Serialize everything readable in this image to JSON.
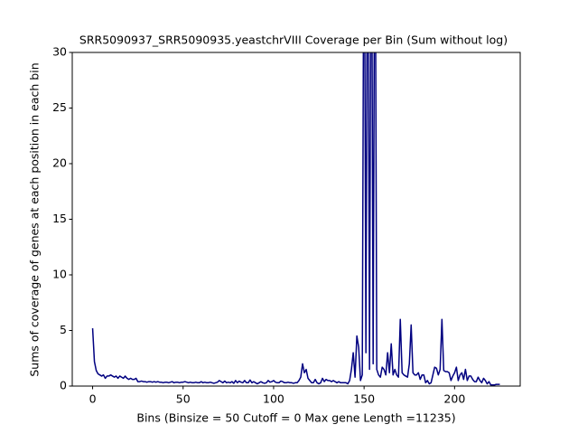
{
  "chart_data": {
    "type": "line",
    "title": "SRR5090937_SRR5090935.yeastchrVIII Coverage per Bin (Sum without log)",
    "xlabel": "Bins  (Binsize = 50 Cutoff = 0 Max gene Length =11235)",
    "ylabel": "Sums of coverage of genes at each position in each bin",
    "x": [
      0,
      1,
      2,
      3,
      4,
      5,
      6,
      7,
      8,
      9,
      10,
      11,
      12,
      13,
      14,
      15,
      16,
      17,
      18,
      19,
      20,
      21,
      22,
      23,
      24,
      25,
      26,
      27,
      28,
      29,
      30,
      31,
      32,
      33,
      34,
      35,
      36,
      37,
      38,
      39,
      40,
      41,
      42,
      43,
      44,
      45,
      46,
      47,
      48,
      49,
      50,
      51,
      52,
      53,
      54,
      55,
      56,
      57,
      58,
      59,
      60,
      61,
      62,
      63,
      64,
      65,
      66,
      67,
      68,
      69,
      70,
      71,
      72,
      73,
      74,
      75,
      76,
      77,
      78,
      79,
      80,
      81,
      82,
      83,
      84,
      85,
      86,
      87,
      88,
      89,
      90,
      91,
      92,
      93,
      94,
      95,
      96,
      97,
      98,
      99,
      100,
      101,
      102,
      103,
      104,
      105,
      106,
      107,
      108,
      109,
      110,
      111,
      112,
      113,
      114,
      115,
      116,
      117,
      118,
      119,
      120,
      121,
      122,
      123,
      124,
      125,
      126,
      127,
      128,
      129,
      130,
      131,
      132,
      133,
      134,
      135,
      136,
      137,
      138,
      139,
      140,
      141,
      142,
      143,
      144,
      145,
      146,
      147,
      148,
      149,
      150,
      151,
      152,
      153,
      154,
      155,
      156,
      157,
      158,
      159,
      160,
      161,
      162,
      163,
      164,
      165,
      166,
      167,
      168,
      169,
      170,
      171,
      172,
      173,
      174,
      175,
      176,
      177,
      178,
      179,
      180,
      181,
      182,
      183,
      184,
      185,
      186,
      187,
      188,
      189,
      190,
      191,
      192,
      193,
      194,
      195,
      196,
      197,
      198,
      199,
      200,
      201,
      202,
      203,
      204,
      205,
      206,
      207,
      208,
      209,
      210,
      211,
      212,
      213,
      214,
      215,
      216,
      217,
      218,
      219,
      220,
      221,
      222,
      223,
      224,
      225
    ],
    "series": [
      {
        "color": "#000080",
        "values": [
          5.2,
          2.2,
          1.4,
          1.1,
          1.0,
          0.9,
          1.0,
          0.7,
          0.9,
          0.9,
          1.0,
          0.9,
          0.8,
          0.9,
          0.7,
          0.9,
          0.8,
          0.7,
          0.9,
          0.7,
          0.6,
          0.7,
          0.6,
          0.6,
          0.7,
          0.4,
          0.4,
          0.45,
          0.4,
          0.4,
          0.35,
          0.4,
          0.4,
          0.35,
          0.4,
          0.35,
          0.4,
          0.35,
          0.35,
          0.3,
          0.35,
          0.35,
          0.3,
          0.35,
          0.4,
          0.3,
          0.35,
          0.35,
          0.3,
          0.35,
          0.35,
          0.4,
          0.35,
          0.3,
          0.35,
          0.3,
          0.3,
          0.35,
          0.3,
          0.3,
          0.4,
          0.3,
          0.35,
          0.3,
          0.3,
          0.35,
          0.3,
          0.25,
          0.3,
          0.35,
          0.5,
          0.4,
          0.3,
          0.45,
          0.3,
          0.35,
          0.3,
          0.4,
          0.25,
          0.5,
          0.3,
          0.45,
          0.35,
          0.3,
          0.5,
          0.3,
          0.3,
          0.55,
          0.3,
          0.4,
          0.3,
          0.2,
          0.3,
          0.4,
          0.3,
          0.25,
          0.3,
          0.5,
          0.35,
          0.4,
          0.5,
          0.35,
          0.3,
          0.3,
          0.45,
          0.4,
          0.3,
          0.3,
          0.35,
          0.3,
          0.3,
          0.25,
          0.3,
          0.3,
          0.5,
          0.8,
          2.0,
          1.2,
          1.5,
          0.7,
          0.5,
          0.3,
          0.3,
          0.6,
          0.3,
          0.2,
          0.3,
          0.7,
          0.4,
          0.6,
          0.5,
          0.5,
          0.4,
          0.5,
          0.4,
          0.3,
          0.4,
          0.3,
          0.3,
          0.3,
          0.3,
          0.2,
          0.5,
          1.5,
          3.0,
          0.8,
          4.5,
          3.5,
          0.5,
          1.0,
          50,
          3.0,
          50,
          1.5,
          50,
          2.0,
          50,
          1.5,
          1.0,
          0.8,
          1.7,
          1.5,
          1.0,
          3.0,
          1.2,
          3.8,
          1.0,
          1.5,
          1.0,
          0.8,
          6.0,
          1.2,
          1.0,
          0.9,
          0.8,
          2.0,
          5.5,
          1.2,
          1.0,
          1.0,
          1.2,
          0.6,
          1.0,
          1.0,
          0.3,
          0.5,
          0.2,
          0.3,
          1.0,
          1.7,
          1.6,
          1.0,
          1.5,
          6.0,
          1.4,
          1.3,
          1.3,
          1.2,
          0.5,
          0.9,
          1.2,
          1.7,
          0.5,
          1.0,
          1.2,
          0.6,
          1.5,
          0.5,
          0.9,
          0.9,
          0.6,
          0.4,
          0.4,
          0.8,
          0.5,
          0.3,
          0.7,
          0.5,
          0.2,
          0.4,
          0.1,
          0.1,
          0.1,
          0.15,
          0.15,
          0.15
        ]
      }
    ],
    "xlim": [
      -11.25,
      236.25
    ],
    "xticks": [
      0,
      50,
      100,
      150,
      200
    ],
    "ylim": [
      0,
      30
    ],
    "yticks": [
      0,
      5,
      10,
      15,
      20,
      25,
      30
    ]
  }
}
